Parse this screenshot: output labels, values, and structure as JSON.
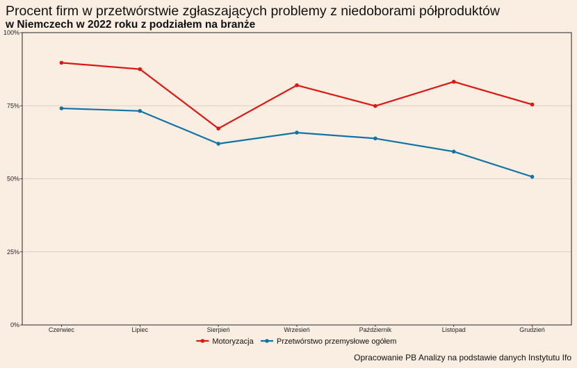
{
  "chart_data": {
    "type": "line",
    "title": "Procent firm w przetwórstwie zgłaszających problemy z niedoborami półproduktów",
    "subtitle": "w Niemczech w 2022 roku z podziałem na branże",
    "categories": [
      "Czerwiec",
      "Lipiec",
      "Sierpień",
      "Wrzesień",
      "Październik",
      "Listopad",
      "Grudzień"
    ],
    "series": [
      {
        "name": "Motoryzacja",
        "color": "#e3150f",
        "values": [
          89.7,
          87.5,
          67.2,
          82.0,
          74.9,
          83.2,
          75.4
        ]
      },
      {
        "name": "Przetwórstwo przemysłowe ogółem",
        "color": "#0f74a3",
        "values": [
          74.1,
          73.2,
          62.0,
          65.8,
          63.8,
          59.3,
          50.7
        ]
      }
    ],
    "ylim": [
      0,
      100
    ],
    "yticks": [
      0,
      25,
      50,
      75,
      100
    ],
    "ytick_labels": [
      "0%",
      "25%",
      "50%",
      "75%",
      "100%"
    ],
    "grid": "horizontal",
    "legend": "bottom",
    "source": "Opracowanie PB Analizy na podstawie danych Instytutu Ifo"
  }
}
